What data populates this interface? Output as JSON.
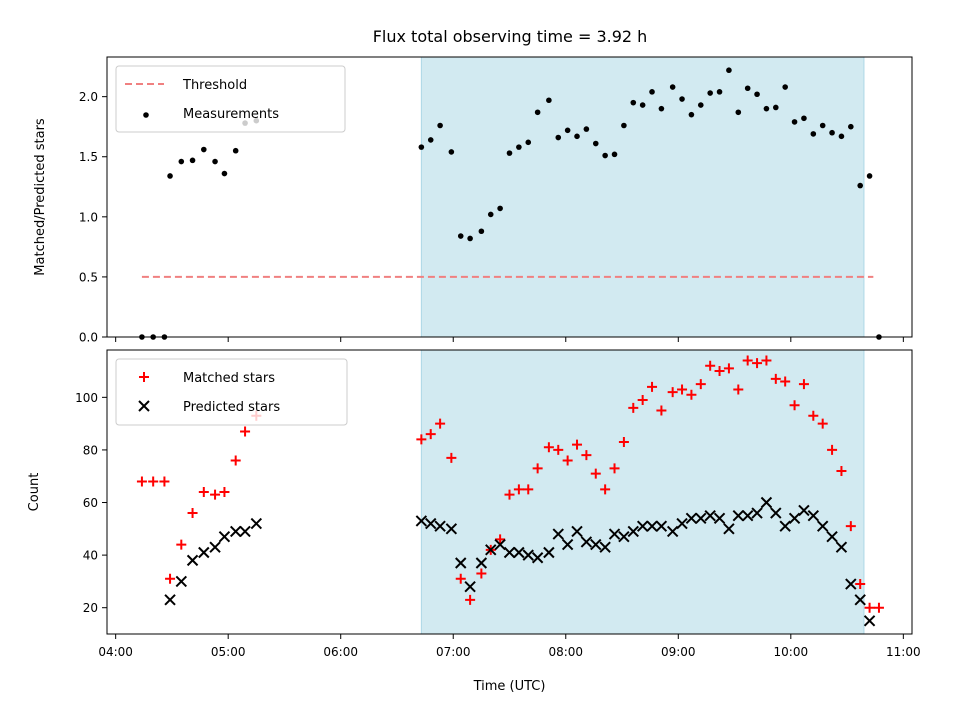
{
  "title": "Flux total observing time = 3.92 h",
  "colors": {
    "shade": "#add8e6",
    "threshold": "#f08080",
    "measurements": "#000000",
    "matched": "#ff0000",
    "predicted": "#000000"
  },
  "chart_data": [
    {
      "type": "scatter",
      "ylabel": "Matched/Predicted stars",
      "xlabel": "",
      "ylim": [
        0,
        2.33
      ],
      "yticks": [
        0.0,
        0.5,
        1.0,
        1.5,
        2.0
      ],
      "ytick_labels": [
        "0.0",
        "0.5",
        "1.0",
        "1.5",
        "2.0"
      ],
      "xlim": [
        "04:00",
        "11:00"
      ],
      "shaded_interval": [
        "06:43",
        "10:39"
      ],
      "legend": {
        "position": "upper left",
        "entries": [
          "Threshold",
          "Measurements"
        ]
      },
      "threshold": {
        "name": "Threshold",
        "style": "dashed",
        "y": 0.5,
        "x": [
          "04:14",
          "10:44"
        ]
      },
      "series": [
        {
          "name": "Measurements",
          "marker": "dot",
          "points": [
            [
              "04:14",
              0.0
            ],
            [
              "04:20",
              0.0
            ],
            [
              "04:26",
              0.0
            ],
            [
              "04:29",
              1.34
            ],
            [
              "04:35",
              1.46
            ],
            [
              "04:41",
              1.47
            ],
            [
              "04:47",
              1.56
            ],
            [
              "04:53",
              1.46
            ],
            [
              "04:58",
              1.36
            ],
            [
              "05:04",
              1.55
            ],
            [
              "05:09",
              1.78
            ],
            [
              "05:15",
              1.8
            ],
            [
              "06:43",
              1.58
            ],
            [
              "06:48",
              1.64
            ],
            [
              "06:53",
              1.76
            ],
            [
              "06:59",
              1.54
            ],
            [
              "07:04",
              0.84
            ],
            [
              "07:09",
              0.82
            ],
            [
              "07:15",
              0.88
            ],
            [
              "07:20",
              1.02
            ],
            [
              "07:25",
              1.07
            ],
            [
              "07:30",
              1.53
            ],
            [
              "07:35",
              1.58
            ],
            [
              "07:40",
              1.62
            ],
            [
              "07:45",
              1.87
            ],
            [
              "07:51",
              1.97
            ],
            [
              "07:56",
              1.66
            ],
            [
              "08:01",
              1.72
            ],
            [
              "08:06",
              1.67
            ],
            [
              "08:11",
              1.73
            ],
            [
              "08:16",
              1.61
            ],
            [
              "08:21",
              1.51
            ],
            [
              "08:26",
              1.52
            ],
            [
              "08:31",
              1.76
            ],
            [
              "08:36",
              1.95
            ],
            [
              "08:41",
              1.93
            ],
            [
              "08:46",
              2.04
            ],
            [
              "08:51",
              1.9
            ],
            [
              "08:57",
              2.08
            ],
            [
              "09:02",
              1.98
            ],
            [
              "09:07",
              1.85
            ],
            [
              "09:12",
              1.93
            ],
            [
              "09:17",
              2.03
            ],
            [
              "09:22",
              2.04
            ],
            [
              "09:27",
              2.22
            ],
            [
              "09:32",
              1.87
            ],
            [
              "09:37",
              2.07
            ],
            [
              "09:42",
              2.02
            ],
            [
              "09:47",
              1.9
            ],
            [
              "09:52",
              1.91
            ],
            [
              "09:57",
              2.08
            ],
            [
              "10:02",
              1.79
            ],
            [
              "10:07",
              1.82
            ],
            [
              "10:12",
              1.69
            ],
            [
              "10:17",
              1.76
            ],
            [
              "10:22",
              1.7
            ],
            [
              "10:27",
              1.67
            ],
            [
              "10:32",
              1.75
            ],
            [
              "10:37",
              1.26
            ],
            [
              "10:42",
              1.34
            ],
            [
              "10:47",
              0.0
            ]
          ]
        }
      ]
    },
    {
      "type": "scatter",
      "ylabel": "Count",
      "xlabel": "Time (UTC)",
      "ylim": [
        10,
        118
      ],
      "yticks": [
        20,
        40,
        60,
        80,
        100
      ],
      "ytick_labels": [
        "20",
        "40",
        "60",
        "80",
        "100"
      ],
      "xticks": [
        "04:00",
        "05:00",
        "06:00",
        "07:00",
        "08:00",
        "09:00",
        "10:00",
        "11:00"
      ],
      "xtick_labels": [
        "04:00",
        "05:00",
        "06:00",
        "07:00",
        "08:00",
        "09:00",
        "10:00",
        "11:00"
      ],
      "xlim": [
        "04:00",
        "11:00"
      ],
      "shaded_interval": [
        "06:43",
        "10:39"
      ],
      "legend": {
        "position": "upper left",
        "entries": [
          "Matched stars",
          "Predicted stars"
        ]
      },
      "series": [
        {
          "name": "Matched stars",
          "marker": "plus",
          "points": [
            [
              "04:14",
              68
            ],
            [
              "04:20",
              68
            ],
            [
              "04:26",
              68
            ],
            [
              "04:29",
              31
            ],
            [
              "04:35",
              44
            ],
            [
              "04:41",
              56
            ],
            [
              "04:47",
              64
            ],
            [
              "04:53",
              63
            ],
            [
              "04:58",
              64
            ],
            [
              "05:04",
              76
            ],
            [
              "05:09",
              87
            ],
            [
              "05:15",
              93
            ],
            [
              "06:43",
              84
            ],
            [
              "06:48",
              86
            ],
            [
              "06:53",
              90
            ],
            [
              "06:59",
              77
            ],
            [
              "07:04",
              31
            ],
            [
              "07:09",
              23
            ],
            [
              "07:15",
              33
            ],
            [
              "07:20",
              42
            ],
            [
              "07:25",
              46
            ],
            [
              "07:30",
              63
            ],
            [
              "07:35",
              65
            ],
            [
              "07:40",
              65
            ],
            [
              "07:45",
              73
            ],
            [
              "07:51",
              81
            ],
            [
              "07:56",
              80
            ],
            [
              "08:01",
              76
            ],
            [
              "08:06",
              82
            ],
            [
              "08:11",
              78
            ],
            [
              "08:16",
              71
            ],
            [
              "08:21",
              65
            ],
            [
              "08:26",
              73
            ],
            [
              "08:31",
              83
            ],
            [
              "08:36",
              96
            ],
            [
              "08:41",
              99
            ],
            [
              "08:46",
              104
            ],
            [
              "08:51",
              95
            ],
            [
              "08:57",
              102
            ],
            [
              "09:02",
              103
            ],
            [
              "09:07",
              101
            ],
            [
              "09:12",
              105
            ],
            [
              "09:17",
              112
            ],
            [
              "09:22",
              110
            ],
            [
              "09:27",
              111
            ],
            [
              "09:32",
              103
            ],
            [
              "09:37",
              114
            ],
            [
              "09:42",
              113
            ],
            [
              "09:47",
              114
            ],
            [
              "09:52",
              107
            ],
            [
              "09:57",
              106
            ],
            [
              "10:02",
              97
            ],
            [
              "10:07",
              105
            ],
            [
              "10:12",
              93
            ],
            [
              "10:17",
              90
            ],
            [
              "10:22",
              80
            ],
            [
              "10:27",
              72
            ],
            [
              "10:32",
              51
            ],
            [
              "10:37",
              29
            ],
            [
              "10:42",
              20
            ],
            [
              "10:47",
              20
            ]
          ]
        },
        {
          "name": "Predicted stars",
          "marker": "x",
          "points": [
            [
              "04:29",
              23
            ],
            [
              "04:35",
              30
            ],
            [
              "04:41",
              38
            ],
            [
              "04:47",
              41
            ],
            [
              "04:53",
              43
            ],
            [
              "04:58",
              47
            ],
            [
              "05:04",
              49
            ],
            [
              "05:09",
              49
            ],
            [
              "05:15",
              52
            ],
            [
              "06:43",
              53
            ],
            [
              "06:48",
              52
            ],
            [
              "06:53",
              51
            ],
            [
              "06:59",
              50
            ],
            [
              "07:04",
              37
            ],
            [
              "07:09",
              28
            ],
            [
              "07:15",
              37
            ],
            [
              "07:20",
              42
            ],
            [
              "07:25",
              44
            ],
            [
              "07:30",
              41
            ],
            [
              "07:35",
              41
            ],
            [
              "07:40",
              40
            ],
            [
              "07:45",
              39
            ],
            [
              "07:51",
              41
            ],
            [
              "07:56",
              48
            ],
            [
              "08:01",
              44
            ],
            [
              "08:06",
              49
            ],
            [
              "08:11",
              45
            ],
            [
              "08:16",
              44
            ],
            [
              "08:21",
              43
            ],
            [
              "08:26",
              48
            ],
            [
              "08:31",
              47
            ],
            [
              "08:36",
              49
            ],
            [
              "08:41",
              51
            ],
            [
              "08:46",
              51
            ],
            [
              "08:51",
              51
            ],
            [
              "08:57",
              49
            ],
            [
              "09:02",
              52
            ],
            [
              "09:07",
              54
            ],
            [
              "09:12",
              54
            ],
            [
              "09:17",
              55
            ],
            [
              "09:22",
              54
            ],
            [
              "09:27",
              50
            ],
            [
              "09:32",
              55
            ],
            [
              "09:37",
              55
            ],
            [
              "09:42",
              56
            ],
            [
              "09:47",
              60
            ],
            [
              "09:52",
              56
            ],
            [
              "09:57",
              51
            ],
            [
              "10:02",
              54
            ],
            [
              "10:07",
              57
            ],
            [
              "10:12",
              55
            ],
            [
              "10:17",
              51
            ],
            [
              "10:22",
              47
            ],
            [
              "10:27",
              43
            ],
            [
              "10:32",
              29
            ],
            [
              "10:37",
              23
            ],
            [
              "10:42",
              15
            ]
          ]
        }
      ]
    }
  ]
}
